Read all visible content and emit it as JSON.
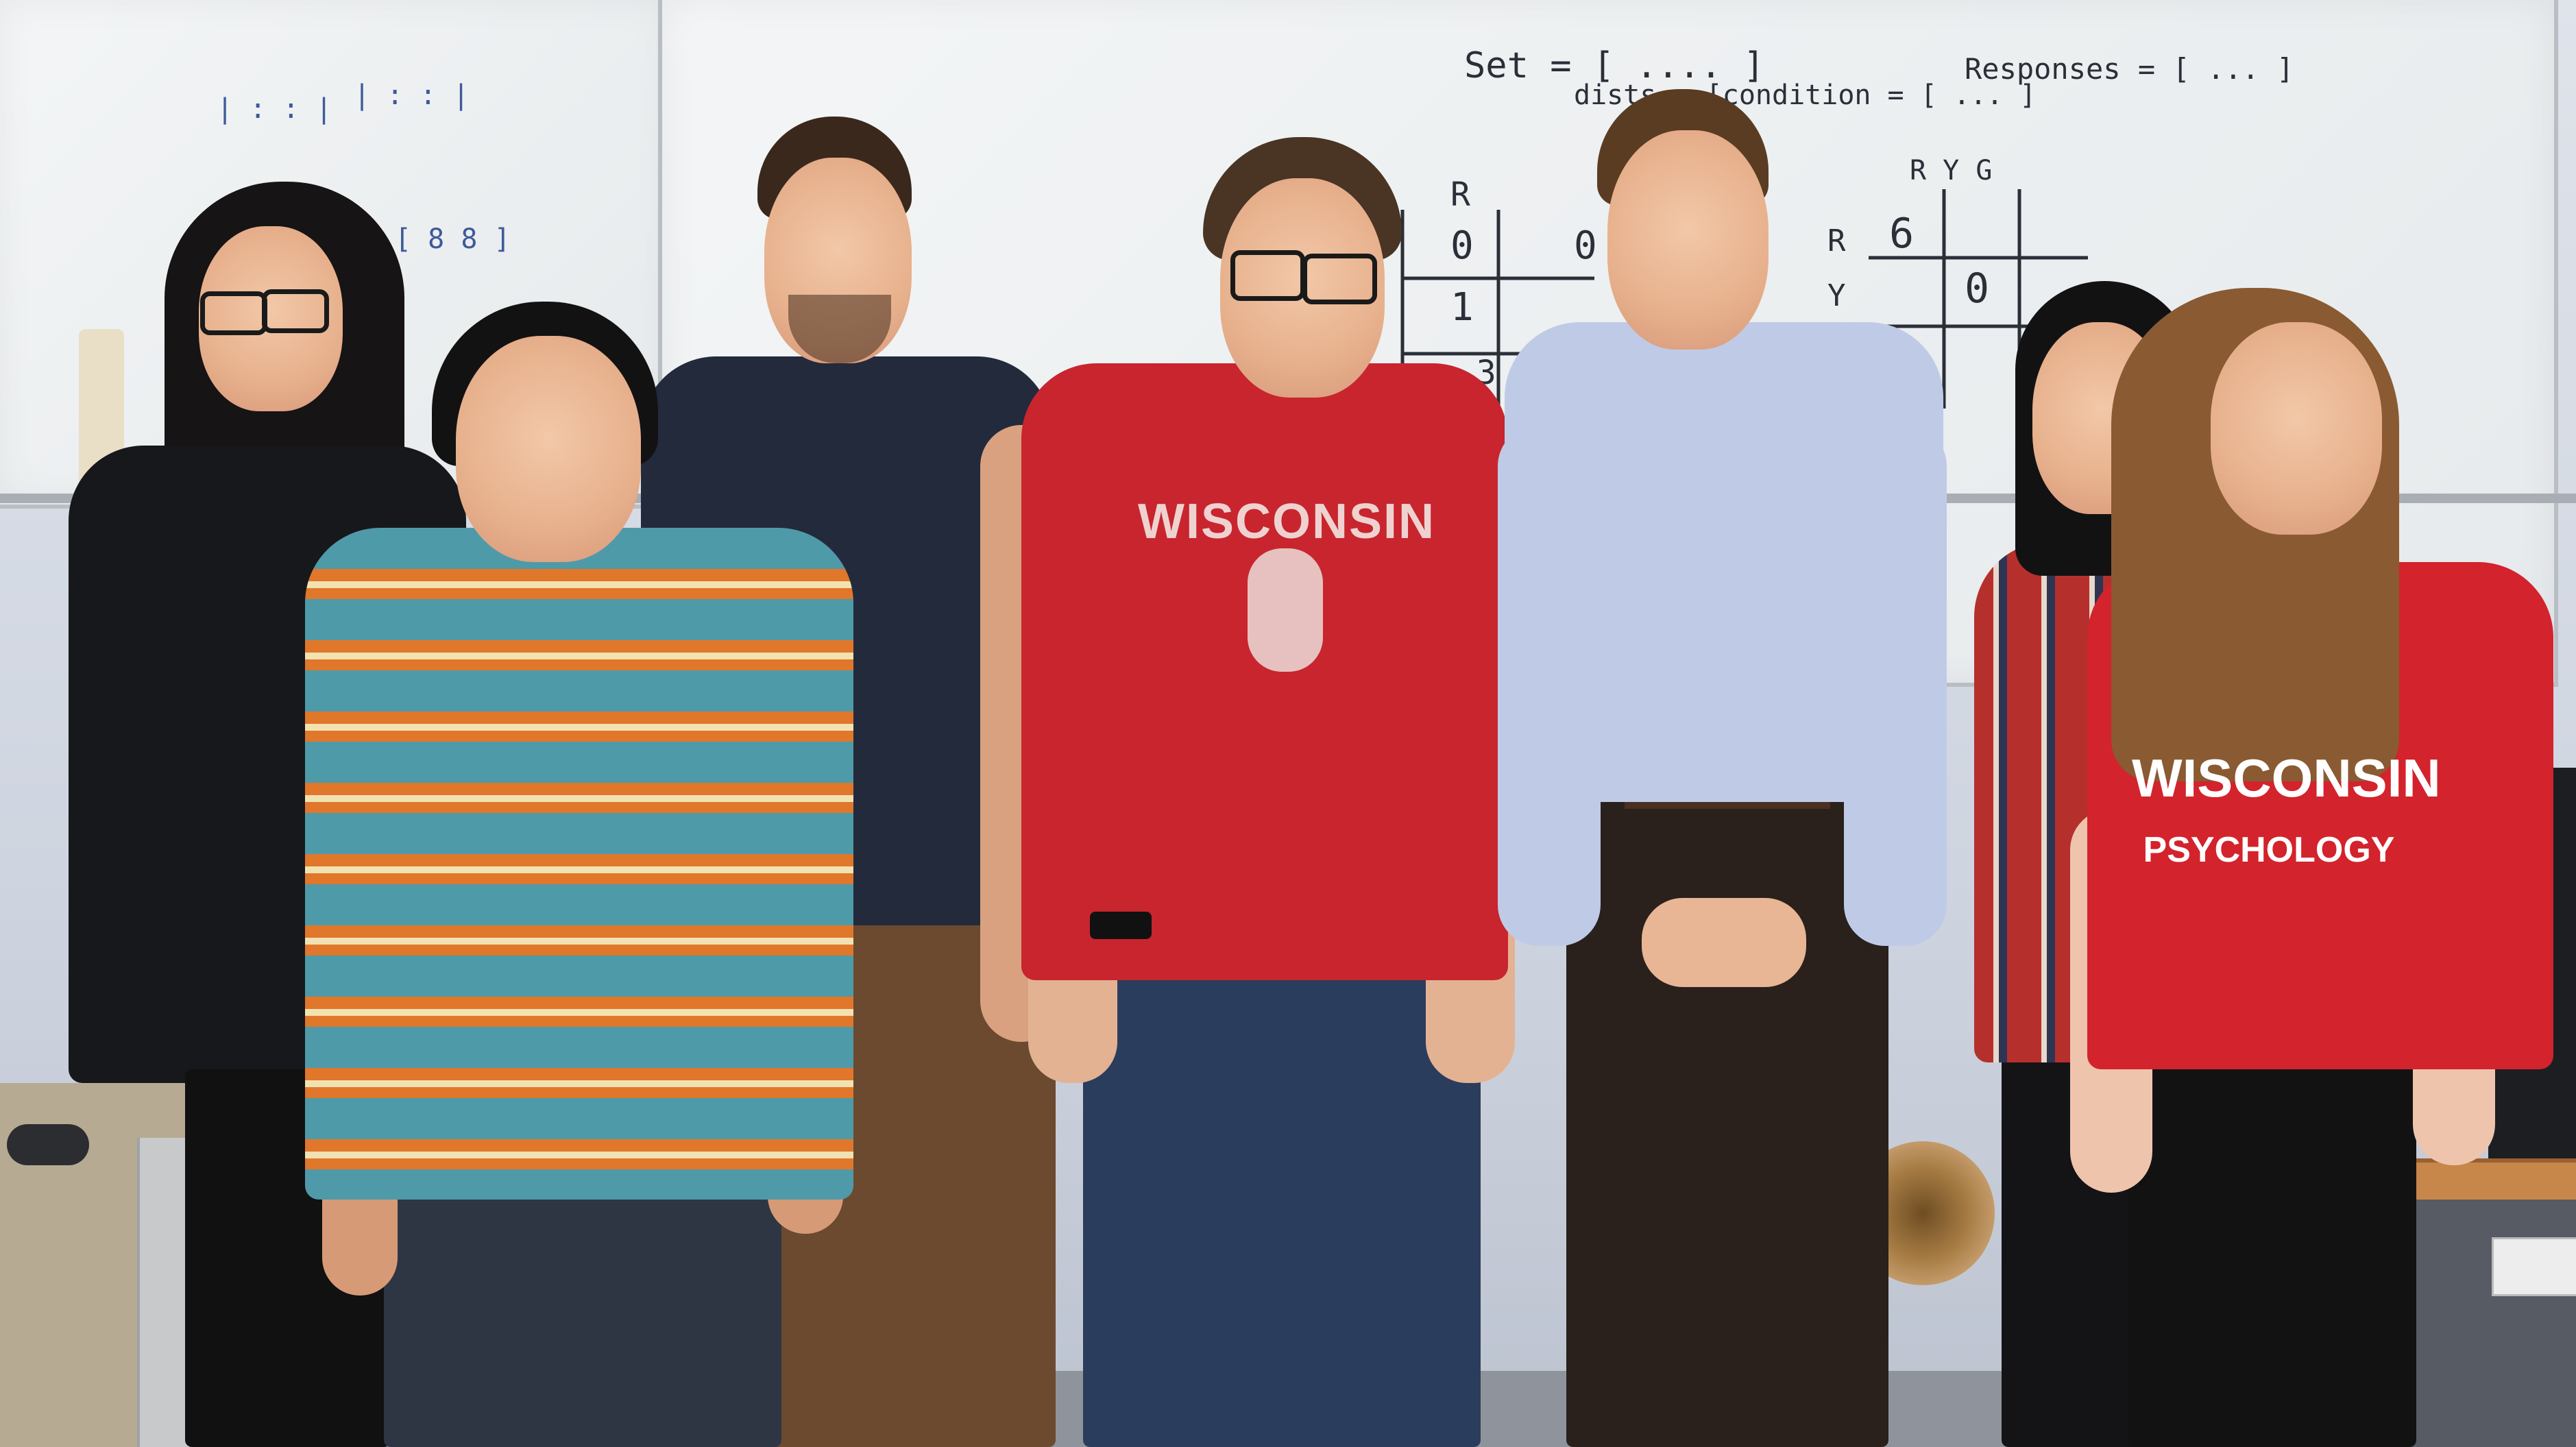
{
  "whiteboard": {
    "line1": "Set = [  ....  ]",
    "line2": "dists = [condition = [ ... ]",
    "line3": "Responses = [ ... ]",
    "col_label_r": "R",
    "matrix_cols": "R  Y  G",
    "matrix_row_r": "R",
    "matrix_row_y": "Y",
    "cell_6": "6",
    "cell_0": "0",
    "grid_zero_a": "0",
    "grid_zero_b": "0",
    "grid_one": "1",
    "grid_neg": "-.3"
  },
  "shirts": {
    "red_tshirt_text": "WISCONSIN",
    "psych_line1": "WISCONSIN",
    "psych_line2": "PSYCHOLOGY"
  },
  "colors": {
    "wisconsin_red": "#c8252f",
    "navy": "#232a3c",
    "teal_stripe": "#4f9aa8",
    "orange_stripe": "#e0772b",
    "light_blue_shirt": "#bfcbe6"
  }
}
